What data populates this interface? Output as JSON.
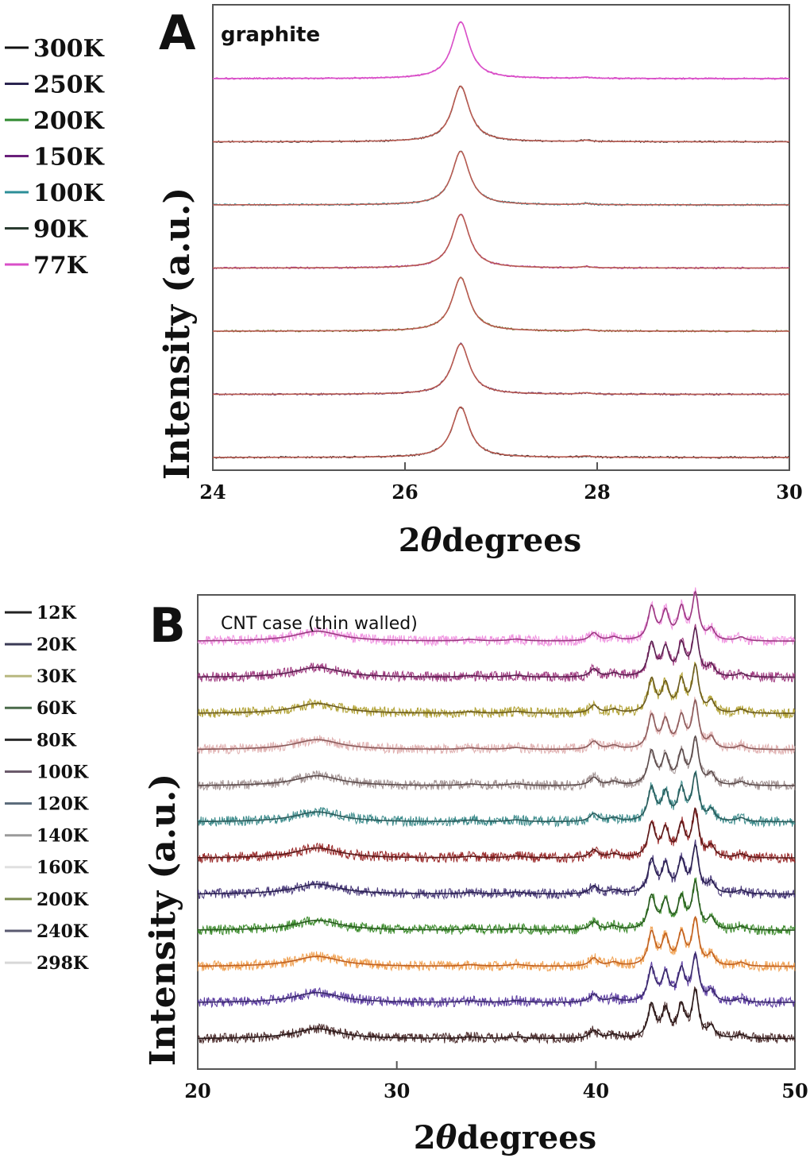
{
  "chart_data": [
    {
      "panel_label": "A",
      "annotation": "graphite",
      "type": "line",
      "xlabel_prefix": "2",
      "xlabel_symbol": "θ",
      "xlabel_suffix": "degrees",
      "ylabel": "Intensity (a.u.)",
      "xlim": [
        24,
        30
      ],
      "xticks": [
        "24",
        "26",
        "28",
        "30"
      ],
      "ylim": [
        0,
        8
      ],
      "stacked": true,
      "peak_positions": [
        26.58,
        27.88
      ],
      "legend": [
        {
          "label": "300K",
          "color": "#111111"
        },
        {
          "label": "250K",
          "color": "#2b2550"
        },
        {
          "label": "200K",
          "color": "#2f8a2f"
        },
        {
          "label": "150K",
          "color": "#6a1f7a"
        },
        {
          "label": "100K",
          "color": "#2c8f98"
        },
        {
          "label": "90K",
          "color": "#2a3b30"
        },
        {
          "label": "77K",
          "color": "#d94fc8"
        }
      ],
      "series": [
        {
          "color": "#1a1a1a",
          "fit_color": "#b85a50",
          "offset": 0,
          "peak_height": 0.8
        },
        {
          "color": "#5a2a6a",
          "fit_color": "#b85a50",
          "offset": 1,
          "peak_height": 0.8
        },
        {
          "color": "#6b7a2a",
          "fit_color": "#b85a50",
          "offset": 2,
          "peak_height": 0.85
        },
        {
          "color": "#b03ab0",
          "fit_color": "#b85a50",
          "offset": 3,
          "peak_height": 0.85
        },
        {
          "color": "#2c8f98",
          "fit_color": "#b85a50",
          "offset": 4,
          "peak_height": 0.85
        },
        {
          "color": "#3a3a3a",
          "fit_color": "#b85a50",
          "offset": 5,
          "peak_height": 0.88
        },
        {
          "color": "#d94fc8",
          "fit_color": "#d94fc8",
          "offset": 6,
          "peak_height": 0.9
        }
      ]
    },
    {
      "panel_label": "B",
      "annotation": "CNT case (thin walled)",
      "type": "line",
      "xlabel_prefix": "2",
      "xlabel_symbol": "θ",
      "xlabel_suffix": "degrees",
      "ylabel": "Intensity (a.u.)",
      "xlim": [
        20,
        50
      ],
      "xticks": [
        "20",
        "30",
        "40",
        "50"
      ],
      "ylim": [
        0,
        13
      ],
      "stacked": true,
      "peak_positions": [
        26.0,
        39.9,
        40.9,
        42.8,
        43.5,
        44.3,
        45.0,
        45.8,
        47.3
      ],
      "legend": [
        {
          "label": "12K",
          "color": "#222222"
        },
        {
          "label": "20K",
          "color": "#3a3a55"
        },
        {
          "label": "30K",
          "color": "#b8b880"
        },
        {
          "label": "60K",
          "color": "#4a6a4a"
        },
        {
          "label": "80K",
          "color": "#2a2a2a"
        },
        {
          "label": "100K",
          "color": "#6a5a6a"
        },
        {
          "label": "120K",
          "color": "#5a6a7a"
        },
        {
          "label": "140K",
          "color": "#9a9a9a"
        },
        {
          "label": "160K",
          "color": "#e0e0e0"
        },
        {
          "label": "200K",
          "color": "#7a8a50"
        },
        {
          "label": "240K",
          "color": "#5a5a70"
        },
        {
          "label": "298K",
          "color": "#d8d8d8"
        }
      ],
      "series": [
        {
          "color": "#4a2a2a",
          "fit_color": "#2a1a1a",
          "offset": 0
        },
        {
          "color": "#5a3aa0",
          "fit_color": "#3a2a6a",
          "offset": 1
        },
        {
          "color": "#f0a050",
          "fit_color": "#c06020",
          "offset": 2
        },
        {
          "color": "#3a8a2a",
          "fit_color": "#2a5a20",
          "offset": 3
        },
        {
          "color": "#4a3a7a",
          "fit_color": "#2a2050",
          "offset": 4
        },
        {
          "color": "#9a2a2a",
          "fit_color": "#5a1a1a",
          "offset": 5
        },
        {
          "color": "#3a8a8a",
          "fit_color": "#2a5a5a",
          "offset": 6
        },
        {
          "color": "#a09090",
          "fit_color": "#5a4a4a",
          "offset": 7
        },
        {
          "color": "#e0b0b0",
          "fit_color": "#8a5a5a",
          "offset": 8
        },
        {
          "color": "#b0a030",
          "fit_color": "#6a5a20",
          "offset": 9
        },
        {
          "color": "#a03a80",
          "fit_color": "#5a2050",
          "offset": 10
        },
        {
          "color": "#f090e0",
          "fit_color": "#9a3a80",
          "offset": 11
        }
      ]
    }
  ]
}
